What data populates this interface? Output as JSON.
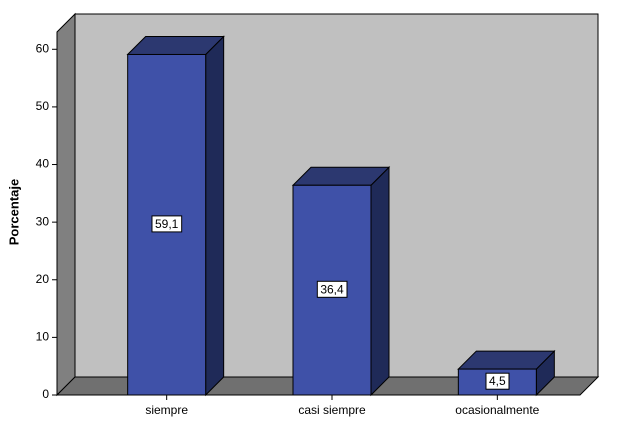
{
  "chart_data": {
    "type": "bar3d",
    "y_label": "Porcentaje",
    "categories": [
      "siempre",
      "casi siempre",
      "ocasionalmente"
    ],
    "values": [
      59.1,
      36.4,
      4.5
    ],
    "value_labels": [
      "59,1",
      "36,4",
      "4,5"
    ],
    "color": "#3f51a8",
    "ylim": [
      0,
      63
    ],
    "yticks": [
      0,
      10,
      20,
      30,
      40,
      50,
      60
    ]
  }
}
